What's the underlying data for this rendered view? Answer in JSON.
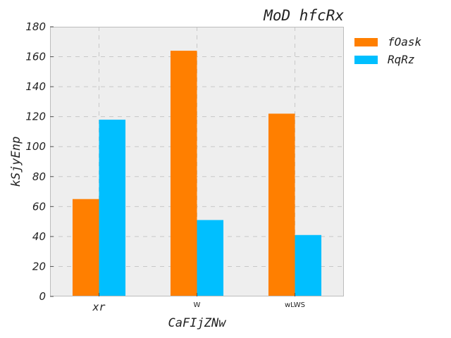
{
  "chart_data": {
    "type": "bar",
    "title": "MoD hfcRx",
    "xlabel": "CaFIjZNw",
    "ylabel": "kSjyEnp",
    "categories": [
      "xr",
      "W",
      "wLWS"
    ],
    "series": [
      {
        "name": "fOask",
        "values": [
          65,
          164,
          122
        ],
        "color": "#ff7f00"
      },
      {
        "name": "RqRz",
        "values": [
          118,
          51,
          41
        ],
        "color": "#00bfff"
      }
    ],
    "ylim": [
      0,
      180
    ],
    "yticks": [
      0,
      20,
      40,
      60,
      80,
      100,
      120,
      140,
      160,
      180
    ],
    "grid": true,
    "legend_position": "outside-top-right",
    "plot_background": "#eeeeee"
  }
}
